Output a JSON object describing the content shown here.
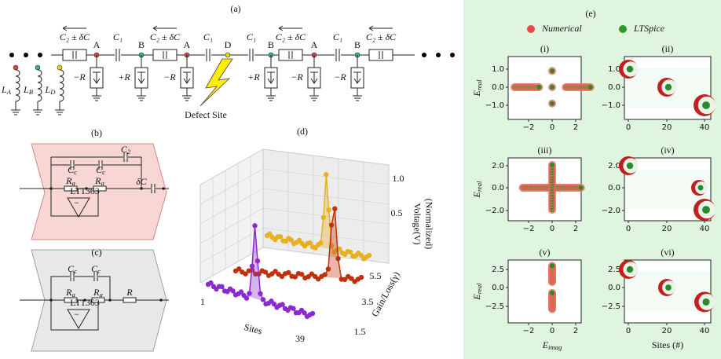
{
  "panel_a": {
    "label": "(a)",
    "capacitors": [
      "C₂ ± δC",
      "C₁",
      "C₂ ± δC",
      "C₁",
      "C₁",
      "C₂ ± δC",
      "C₁",
      "C₂ ± δC"
    ],
    "nodes": [
      "A",
      "B",
      "A",
      "D",
      "B",
      "A",
      "B"
    ],
    "resistors": [
      "−R",
      "+R",
      "−R",
      "+R",
      "−R",
      "−R"
    ],
    "inductors": [
      {
        "symbol": "L",
        "sub": "A"
      },
      {
        "symbol": "L",
        "sub": "B"
      },
      {
        "symbol": "L",
        "sub": "D"
      }
    ],
    "defect": "Defect Site"
  },
  "panel_b": {
    "label": "(b)",
    "components": [
      {
        "symbol": "C",
        "sub": "c"
      },
      {
        "symbol": "C",
        "sub": "c"
      },
      {
        "symbol": "C",
        "sub": "2"
      },
      {
        "symbol": "R",
        "sub": "a"
      },
      {
        "symbol": "R",
        "sub": "a"
      }
    ],
    "delta": "δC",
    "opamp": "LT1363"
  },
  "panel_c": {
    "label": "(c)",
    "components": [
      {
        "symbol": "C",
        "sub": "c"
      },
      {
        "symbol": "C",
        "sub": "c"
      },
      {
        "symbol": "R",
        "sub": "a"
      },
      {
        "symbol": "R",
        "sub": "a"
      }
    ],
    "resistor": "R",
    "opamp": "LT1363"
  },
  "panel_d": {
    "label": "(d)",
    "z_label": "Voltage(V)",
    "z_label2": "(Normalized)",
    "y_label": "Gain/Loss(γ)",
    "x_label": "Sites",
    "z_ticks": [
      "1.0",
      "0.5"
    ],
    "y_ticks": [
      "5.5",
      "3.5",
      "1.5"
    ],
    "x_ticks": [
      "1",
      "39"
    ]
  },
  "panel_e": {
    "label": "(e)",
    "legend": [
      "Numerical",
      "LTSpice"
    ],
    "subplots": [
      {
        "label": "(i)",
        "yticks": [
          "1.0",
          "0.0",
          "−1.0"
        ],
        "xticks": [
          "−2",
          "0",
          "2"
        ]
      },
      {
        "label": "(ii)",
        "yticks": [
          "1.0",
          "0.0",
          "−1.0"
        ],
        "xticks": [
          "0",
          "20",
          "40"
        ]
      },
      {
        "label": "(iii)",
        "yticks": [
          "2.0",
          "0.0",
          "−2.0"
        ],
        "xticks": [
          "−2",
          "0",
          "2"
        ]
      },
      {
        "label": "(iv)",
        "yticks": [
          "2.0",
          "0.0",
          "−2.0"
        ],
        "xticks": [
          "0",
          "20",
          "40"
        ]
      },
      {
        "label": "(v)",
        "yticks": [
          "2.5",
          "0.0",
          "−2.5"
        ],
        "xticks": [
          "−2",
          "0",
          "2"
        ]
      },
      {
        "label": "(vi)",
        "yticks": [
          "2.5",
          "0.0",
          "−2.5"
        ],
        "xticks": [
          "0",
          "20",
          "40"
        ]
      }
    ],
    "y_labels": [
      {
        "symbol": "E",
        "sub": "real"
      },
      {
        "symbol": "E",
        "sub": "real"
      },
      {
        "symbol": "E",
        "sub": "real"
      }
    ],
    "x_label": {
      "symbol": "E",
      "sub": "imag"
    },
    "x_label_right": "Sites (#)"
  }
}
